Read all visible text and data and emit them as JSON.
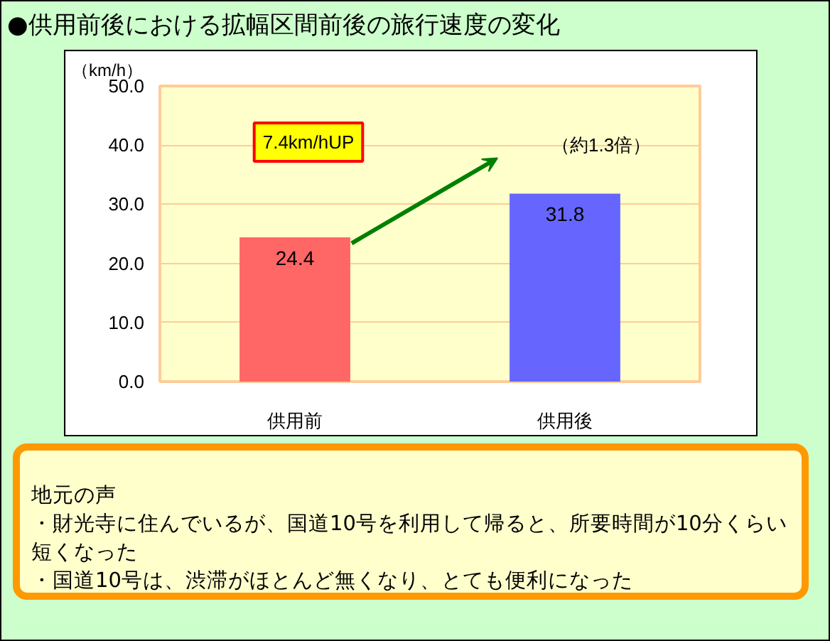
{
  "chart_data": {
    "type": "bar",
    "title": "●供用前後における拡幅区間前後の旅行速度の変化",
    "ylabel": "（km/h）",
    "categories": [
      "供用前",
      "供用後"
    ],
    "values": [
      24.4,
      31.8
    ],
    "colors": [
      "#ff6666",
      "#6666ff"
    ],
    "ylim": [
      0,
      50
    ],
    "yticks": [
      {
        "value": 0,
        "label": "0.0"
      },
      {
        "value": 10,
        "label": "10.0"
      },
      {
        "value": 20,
        "label": "20.0"
      },
      {
        "value": 30,
        "label": "30.0"
      },
      {
        "value": 40,
        "label": "40.0"
      },
      {
        "value": 50,
        "label": "50.0"
      }
    ],
    "grid": "y",
    "data_labels": true,
    "annotations": [
      "7.4km/hUP",
      "（約1.3倍）",
      "地元の声",
      "・財光寺に住んでいるが、国道10号を利用して帰ると、所要時間が10分くらい短くなった",
      "・国道10号は、渋滞がほとんど無くなり、とても便利になった"
    ]
  }
}
